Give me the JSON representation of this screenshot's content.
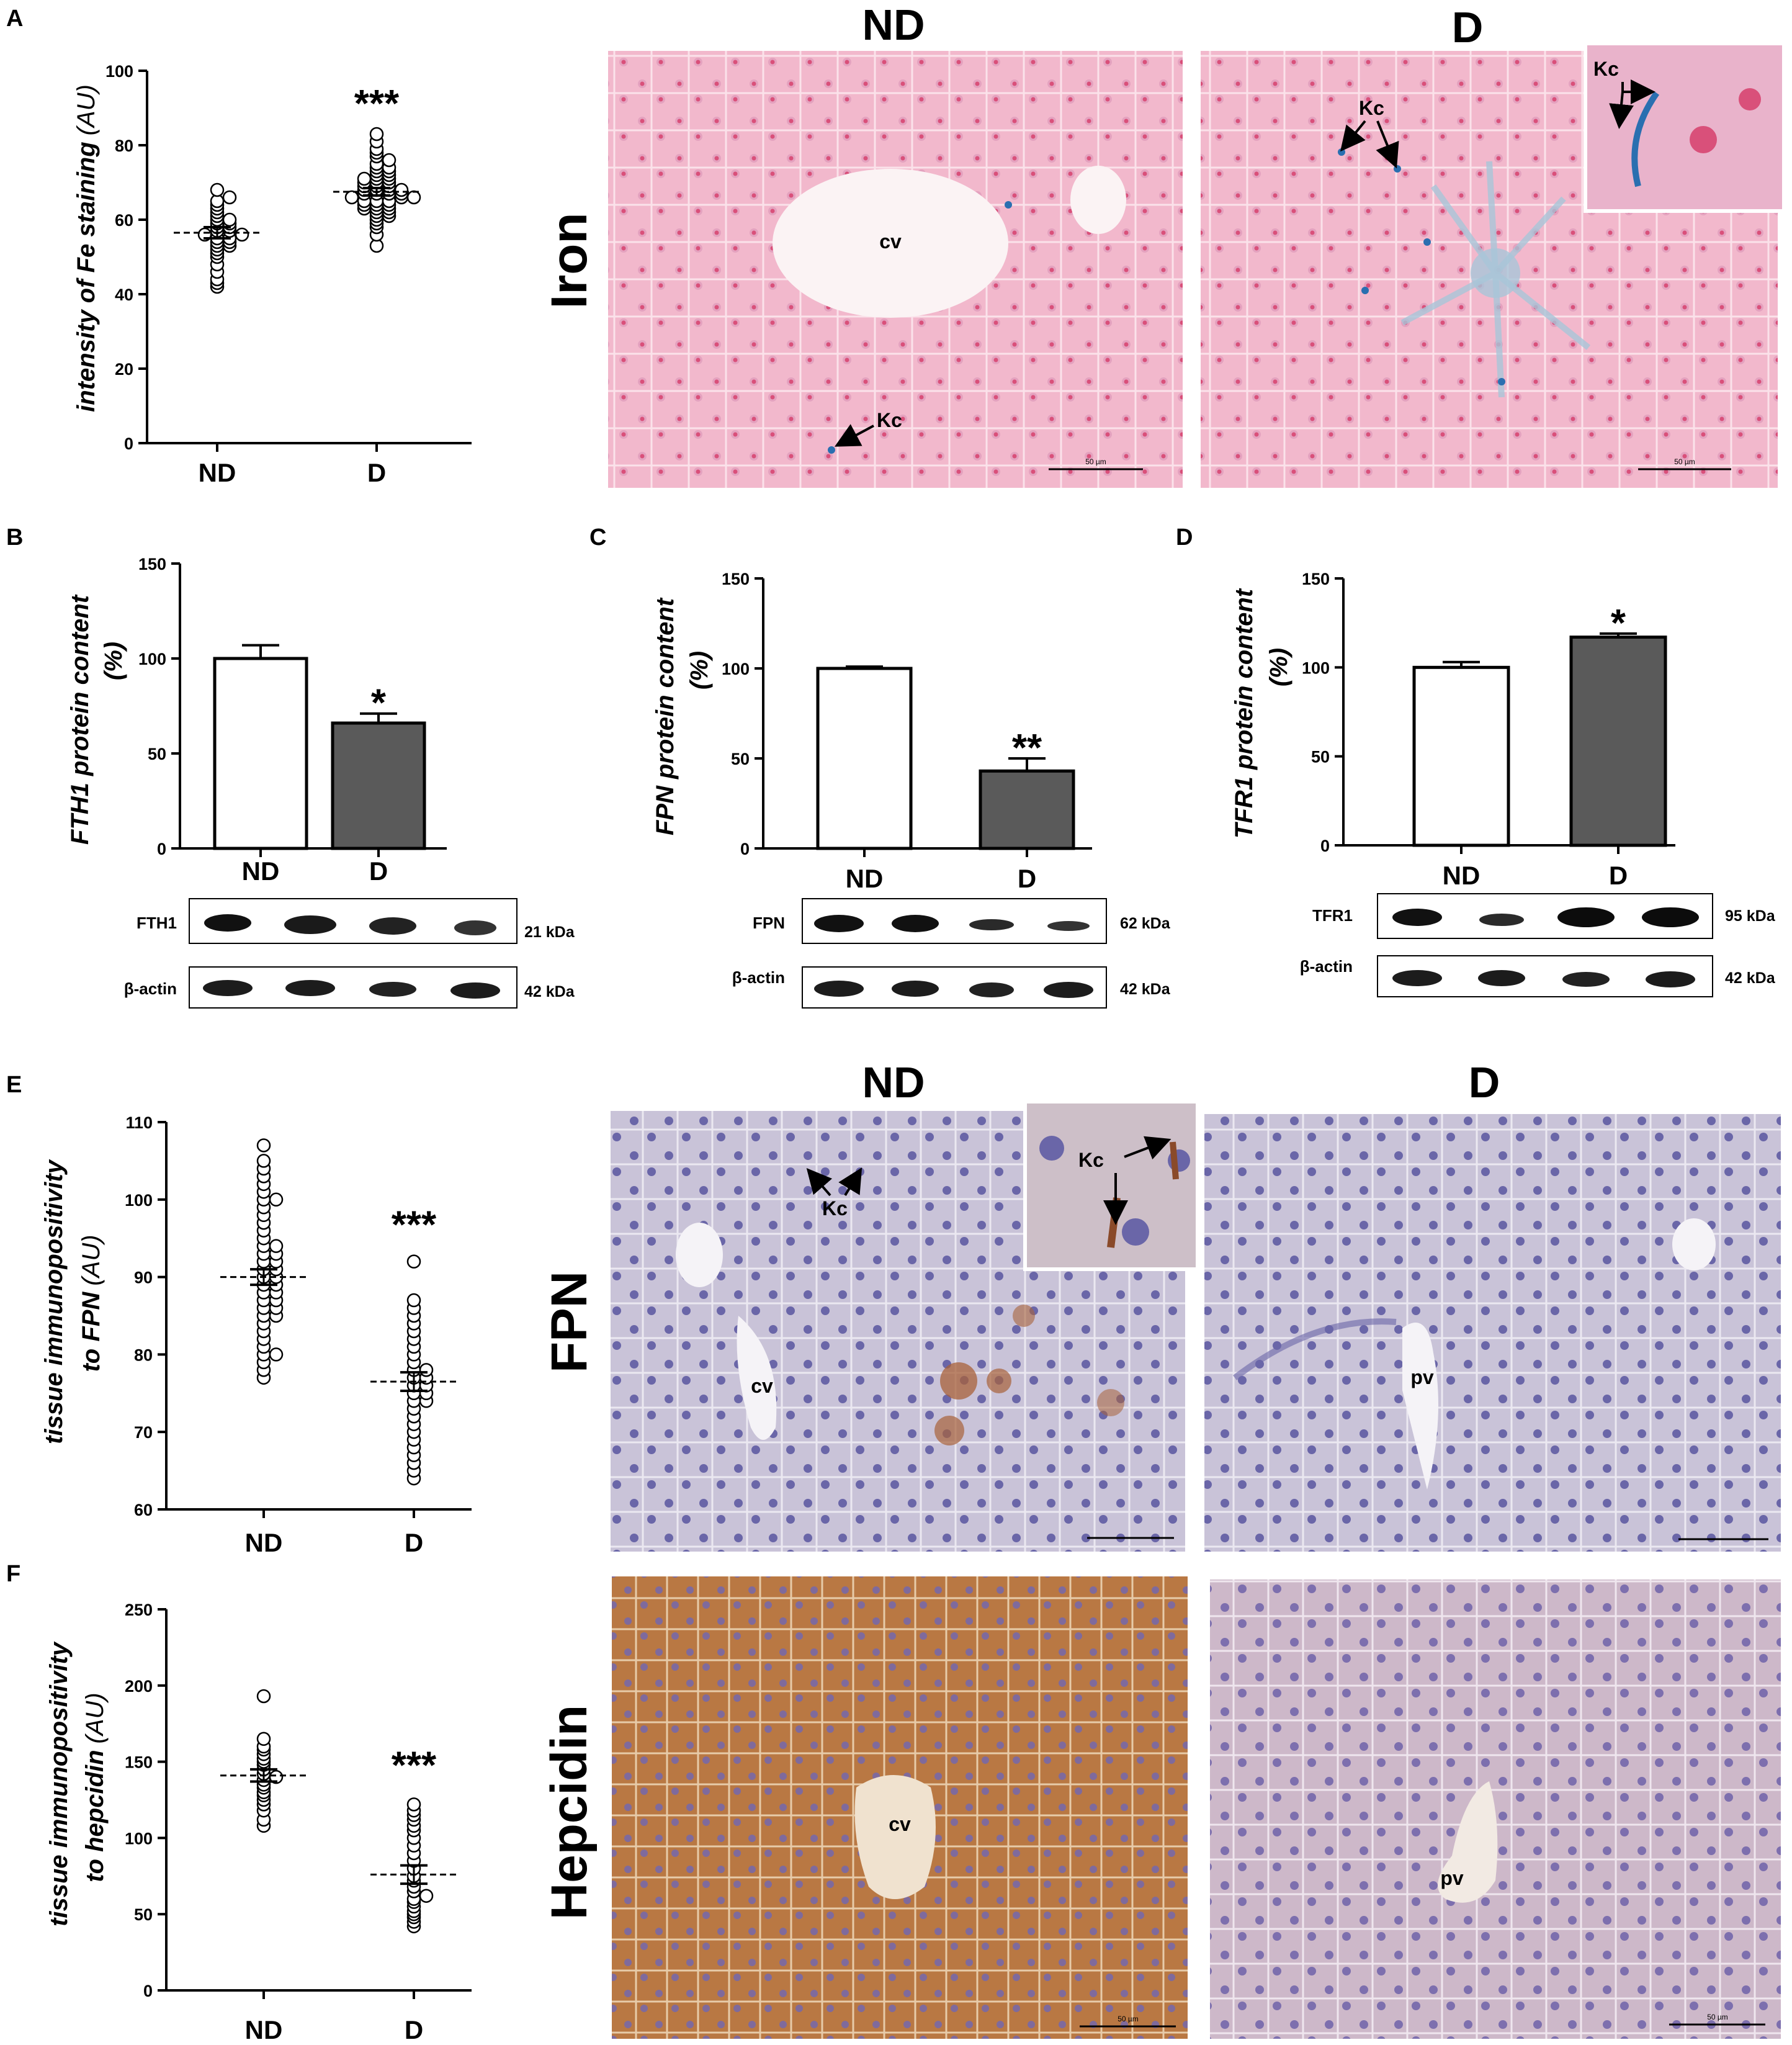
{
  "figure": {
    "panel_letters": [
      "A",
      "B",
      "C",
      "D",
      "E",
      "F"
    ],
    "headers": {
      "iron_nd": "ND",
      "iron_d": "D",
      "ihc_nd": "ND",
      "ihc_d": "D"
    },
    "row_labels": {
      "iron": "Iron",
      "fpn": "FPN",
      "hepcidin": "Hepcidin"
    },
    "micrograph_labels": {
      "cv": "cv",
      "pv": "pv",
      "kc": "Kc",
      "scale": "50 µm"
    },
    "blots": {
      "B": {
        "target": "FTH1",
        "target_kda": "21 kDa",
        "loading": "β-actin",
        "loading_kda": "42 kDa"
      },
      "C": {
        "target": "FPN",
        "target_kda": "62 kDa",
        "loading": "β-actin",
        "loading_kda": "42 kDa"
      },
      "D": {
        "target": "TFR1",
        "target_kda": "95 kDa",
        "loading": "β-actin",
        "loading_kda": "42 kDa"
      }
    },
    "colors": {
      "iron_stain_bg": "#f2b8cc",
      "iron_nucleus": "#d9507a",
      "iron_blue": "#2a6fb0",
      "fpn_bg": "#c9c3d8",
      "fpn_nucleus": "#6a66a8",
      "fpn_brown": "#a8623a",
      "hep_nd_bg": "#b97843",
      "hep_d_bg": "#cdb8c9",
      "bar_d_fill": "#5a5a5a"
    }
  },
  "chart_data": [
    {
      "panel": "A",
      "type": "scatter",
      "ylabel_main": "intensity of Fe staining",
      "ylabel_unit": "(AU)",
      "categories": [
        "ND",
        "D"
      ],
      "yticks": [
        0,
        20,
        40,
        60,
        80,
        100
      ],
      "ylim": [
        0,
        100
      ],
      "significance": "***",
      "groups": [
        {
          "name": "ND",
          "mean": 56.5,
          "sem": 1.5,
          "values": [
            42,
            43,
            44,
            46,
            48,
            50,
            51,
            52,
            53,
            53,
            54,
            54,
            55,
            55,
            56,
            56,
            57,
            57,
            58,
            58,
            59,
            59,
            60,
            60,
            61,
            62,
            63,
            64,
            65,
            66,
            68
          ]
        },
        {
          "name": "D",
          "mean": 67.5,
          "sem": 1.0,
          "values": [
            53,
            56,
            58,
            59,
            60,
            61,
            61,
            62,
            62,
            63,
            63,
            63,
            64,
            64,
            64,
            65,
            65,
            65,
            66,
            66,
            66,
            67,
            67,
            67,
            67,
            68,
            68,
            68,
            68,
            69,
            69,
            69,
            70,
            70,
            70,
            71,
            71,
            71,
            72,
            72,
            73,
            73,
            74,
            74,
            75,
            76,
            77,
            78,
            79,
            81,
            83
          ]
        }
      ]
    },
    {
      "panel": "B",
      "type": "bar",
      "ylabel_main": "FTH1 protein content",
      "ylabel_unit": "(%)",
      "categories": [
        "ND",
        "D"
      ],
      "yticks": [
        0,
        50,
        100,
        150
      ],
      "ylim": [
        0,
        150
      ],
      "values": [
        100,
        66
      ],
      "errors": [
        7,
        5
      ],
      "significance": "*"
    },
    {
      "panel": "C",
      "type": "bar",
      "ylabel_main": "FPN protein content",
      "ylabel_unit": "(%)",
      "categories": [
        "ND",
        "D"
      ],
      "yticks": [
        0,
        50,
        100,
        150
      ],
      "ylim": [
        0,
        150
      ],
      "values": [
        100,
        43
      ],
      "errors": [
        1,
        7
      ],
      "significance": "**"
    },
    {
      "panel": "D",
      "type": "bar",
      "ylabel_main": "TFR1 protein content",
      "ylabel_unit": "(%)",
      "categories": [
        "ND",
        "D"
      ],
      "yticks": [
        0,
        50,
        100,
        150
      ],
      "ylim": [
        0,
        150
      ],
      "values": [
        100,
        117
      ],
      "errors": [
        3,
        2
      ],
      "significance": "*"
    },
    {
      "panel": "E",
      "type": "scatter",
      "ylabel_main": "tissue immunopositivity",
      "ylabel_second": "to FPN",
      "ylabel_unit": "(AU)",
      "categories": [
        "ND",
        "D"
      ],
      "yticks": [
        60,
        70,
        80,
        90,
        100,
        110
      ],
      "ylim": [
        60,
        110
      ],
      "significance": "***",
      "groups": [
        {
          "name": "ND",
          "mean": 90.0,
          "sem": 1.0,
          "values": [
            77,
            78,
            79,
            80,
            80,
            81,
            82,
            83,
            84,
            85,
            85,
            86,
            86,
            87,
            87,
            88,
            88,
            89,
            89,
            90,
            90,
            91,
            91,
            92,
            92,
            93,
            93,
            94,
            94,
            95,
            96,
            97,
            98,
            99,
            100,
            100,
            101,
            102,
            103,
            104,
            105,
            107
          ]
        },
        {
          "name": "D",
          "mean": 76.5,
          "sem": 1.2,
          "values": [
            64,
            65,
            66,
            67,
            68,
            69,
            70,
            71,
            72,
            73,
            74,
            74,
            75,
            75,
            76,
            76,
            77,
            77,
            78,
            78,
            79,
            80,
            81,
            82,
            83,
            84,
            85,
            86,
            87,
            92
          ]
        }
      ]
    },
    {
      "panel": "F",
      "type": "scatter",
      "ylabel_main": "tissue immunopositivity",
      "ylabel_second": "to hepcidin",
      "ylabel_unit": "(AU)",
      "categories": [
        "ND",
        "D"
      ],
      "yticks": [
        0,
        50,
        100,
        150,
        200,
        250
      ],
      "ylim": [
        0,
        250
      ],
      "significance": "***",
      "groups": [
        {
          "name": "ND",
          "mean": 141,
          "sem": 4,
          "values": [
            108,
            112,
            118,
            122,
            125,
            128,
            130,
            133,
            135,
            138,
            140,
            142,
            145,
            148,
            150,
            152,
            155,
            158,
            160,
            165,
            193
          ]
        },
        {
          "name": "D",
          "mean": 76,
          "sem": 6,
          "values": [
            42,
            45,
            48,
            50,
            52,
            55,
            58,
            60,
            62,
            65,
            68,
            72,
            75,
            80,
            85,
            90,
            95,
            100,
            105,
            108,
            112,
            115,
            118,
            122
          ]
        }
      ]
    }
  ]
}
